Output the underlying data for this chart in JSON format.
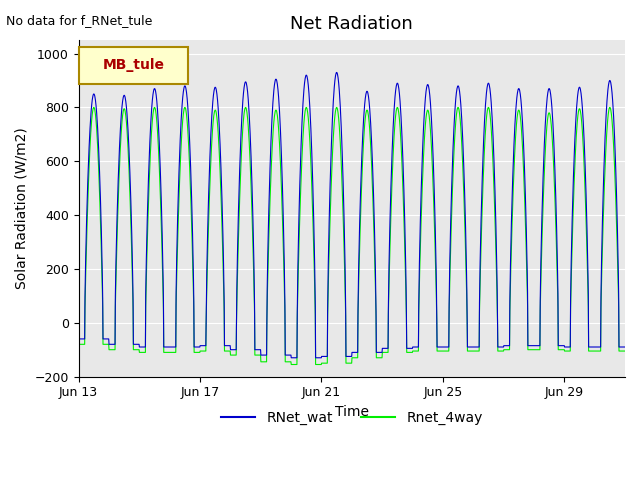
{
  "title": "Net Radiation",
  "xlabel": "Time",
  "ylabel": "Solar Radiation (W/m2)",
  "note": "No data for f_RNet_tule",
  "legend_label1": "RNet_wat",
  "legend_label2": "Rnet_4way",
  "legend_box_label": "MB_tule",
  "color1": "#0000cc",
  "color2": "#00ee00",
  "background_color": "#e8e8e8",
  "ylim": [
    -200,
    1050
  ],
  "yticks": [
    -200,
    0,
    200,
    400,
    600,
    800,
    1000
  ],
  "n_days": 18,
  "peak_heights_blue": [
    850,
    845,
    870,
    880,
    875,
    895,
    905,
    920,
    930,
    860,
    890,
    885,
    880,
    890,
    870,
    870,
    875,
    900
  ],
  "peak_heights_green": [
    800,
    795,
    800,
    800,
    790,
    800,
    790,
    800,
    800,
    790,
    800,
    790,
    800,
    800,
    790,
    780,
    795,
    800
  ],
  "night_vals_blue": [
    -60,
    -80,
    -90,
    -90,
    -85,
    -100,
    -120,
    -130,
    -125,
    -110,
    -95,
    -90,
    -90,
    -90,
    -85,
    -85,
    -90,
    -90
  ],
  "night_vals_green": [
    -80,
    -100,
    -110,
    -110,
    -105,
    -120,
    -145,
    -155,
    -150,
    -130,
    -110,
    -105,
    -105,
    -105,
    -100,
    -100,
    -105,
    -105
  ],
  "xtick_days": [
    0,
    4,
    8,
    12,
    16
  ],
  "xtick_labels": [
    "Jun 13",
    "Jun 17",
    "Jun 21",
    "Jun 25",
    "Jun 29"
  ]
}
